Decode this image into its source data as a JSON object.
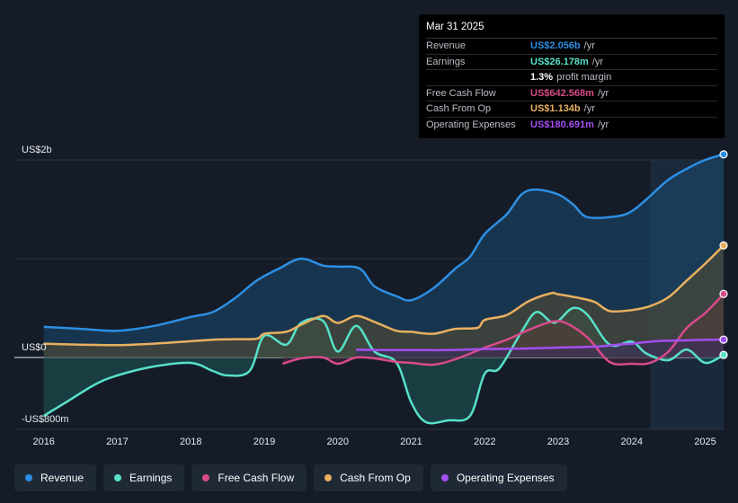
{
  "chart_data": {
    "type": "area",
    "y_axis": {
      "label_top": "US$2b",
      "label_zero": "US$0",
      "label_bottom": "-US$800m",
      "ylim": [
        -800,
        2000
      ],
      "unit": "US$m"
    },
    "x_ticks": [
      "2016",
      "2017",
      "2018",
      "2019",
      "2020",
      "2021",
      "2022",
      "2023",
      "2024",
      "2025"
    ],
    "xlim": [
      2015.6,
      2025.25
    ],
    "highlight_start": 2024.25,
    "series": [
      {
        "name": "Revenue",
        "key": "revenue",
        "color": "#2d8fe3",
        "fill": "#1c4a70",
        "points": [
          [
            2016,
            310
          ],
          [
            2016.5,
            290
          ],
          [
            2017,
            270
          ],
          [
            2017.5,
            320
          ],
          [
            2018,
            410
          ],
          [
            2018.3,
            460
          ],
          [
            2018.6,
            600
          ],
          [
            2018.9,
            780
          ],
          [
            2019.2,
            900
          ],
          [
            2019.5,
            1000
          ],
          [
            2019.8,
            930
          ],
          [
            2020.0,
            920
          ],
          [
            2020.3,
            900
          ],
          [
            2020.5,
            720
          ],
          [
            2020.8,
            620
          ],
          [
            2021.0,
            580
          ],
          [
            2021.3,
            700
          ],
          [
            2021.6,
            900
          ],
          [
            2021.8,
            1020
          ],
          [
            2022.0,
            1250
          ],
          [
            2022.3,
            1450
          ],
          [
            2022.5,
            1650
          ],
          [
            2022.7,
            1700
          ],
          [
            2023.0,
            1650
          ],
          [
            2023.2,
            1550
          ],
          [
            2023.4,
            1420
          ],
          [
            2023.8,
            1430
          ],
          [
            2024.0,
            1480
          ],
          [
            2024.2,
            1600
          ],
          [
            2024.5,
            1800
          ],
          [
            2024.8,
            1930
          ],
          [
            2025.0,
            2000
          ],
          [
            2025.25,
            2056
          ]
        ]
      },
      {
        "name": "Earnings",
        "key": "earnings",
        "color": "#57e1c9",
        "fill": "#1d5a55",
        "points": [
          [
            2016,
            -650
          ],
          [
            2016.3,
            -500
          ],
          [
            2016.7,
            -300
          ],
          [
            2017,
            -200
          ],
          [
            2017.5,
            -100
          ],
          [
            2018,
            -60
          ],
          [
            2018.3,
            -150
          ],
          [
            2018.5,
            -200
          ],
          [
            2018.8,
            -150
          ],
          [
            2019.0,
            220
          ],
          [
            2019.3,
            130
          ],
          [
            2019.5,
            350
          ],
          [
            2019.8,
            370
          ],
          [
            2020.0,
            60
          ],
          [
            2020.25,
            320
          ],
          [
            2020.5,
            60
          ],
          [
            2020.8,
            -60
          ],
          [
            2021.0,
            -500
          ],
          [
            2021.2,
            -720
          ],
          [
            2021.5,
            -700
          ],
          [
            2021.8,
            -650
          ],
          [
            2022.0,
            -180
          ],
          [
            2022.2,
            -120
          ],
          [
            2022.5,
            260
          ],
          [
            2022.7,
            460
          ],
          [
            2022.9,
            360
          ],
          [
            2023.0,
            370
          ],
          [
            2023.2,
            500
          ],
          [
            2023.4,
            430
          ],
          [
            2023.7,
            130
          ],
          [
            2024.0,
            160
          ],
          [
            2024.2,
            40
          ],
          [
            2024.5,
            -30
          ],
          [
            2024.75,
            80
          ],
          [
            2025.0,
            -60
          ],
          [
            2025.25,
            26
          ]
        ]
      },
      {
        "name": "Free Cash Flow",
        "key": "fcf",
        "color": "#d84b8a",
        "fill": "#4a2540",
        "points": [
          [
            2019.25,
            -70
          ],
          [
            2019.5,
            -10
          ],
          [
            2019.8,
            0
          ],
          [
            2020.0,
            -70
          ],
          [
            2020.25,
            0
          ],
          [
            2020.5,
            -10
          ],
          [
            2020.8,
            -50
          ],
          [
            2021.0,
            -60
          ],
          [
            2021.3,
            -80
          ],
          [
            2021.6,
            -20
          ],
          [
            2022.0,
            100
          ],
          [
            2022.3,
            180
          ],
          [
            2022.6,
            280
          ],
          [
            2022.9,
            360
          ],
          [
            2023.1,
            350
          ],
          [
            2023.4,
            200
          ],
          [
            2023.7,
            -50
          ],
          [
            2024.0,
            -70
          ],
          [
            2024.25,
            -60
          ],
          [
            2024.5,
            60
          ],
          [
            2024.75,
            300
          ],
          [
            2025.0,
            450
          ],
          [
            2025.25,
            643
          ]
        ]
      },
      {
        "name": "Cash From Op",
        "key": "cfo",
        "color": "#e8b060",
        "fill": "#5a4a30",
        "points": [
          [
            2016,
            140
          ],
          [
            2016.5,
            130
          ],
          [
            2017,
            125
          ],
          [
            2017.5,
            140
          ],
          [
            2018,
            165
          ],
          [
            2018.3,
            180
          ],
          [
            2018.6,
            185
          ],
          [
            2018.9,
            190
          ],
          [
            2019.0,
            240
          ],
          [
            2019.3,
            260
          ],
          [
            2019.5,
            330
          ],
          [
            2019.8,
            420
          ],
          [
            2020.0,
            350
          ],
          [
            2020.25,
            420
          ],
          [
            2020.5,
            360
          ],
          [
            2020.8,
            270
          ],
          [
            2021.0,
            260
          ],
          [
            2021.3,
            240
          ],
          [
            2021.6,
            290
          ],
          [
            2021.9,
            300
          ],
          [
            2022.0,
            380
          ],
          [
            2022.3,
            430
          ],
          [
            2022.6,
            570
          ],
          [
            2022.9,
            650
          ],
          [
            2023.0,
            640
          ],
          [
            2023.3,
            600
          ],
          [
            2023.5,
            560
          ],
          [
            2023.7,
            470
          ],
          [
            2024.0,
            480
          ],
          [
            2024.25,
            520
          ],
          [
            2024.5,
            610
          ],
          [
            2024.75,
            780
          ],
          [
            2025.0,
            950
          ],
          [
            2025.25,
            1134
          ]
        ]
      },
      {
        "name": "Operating Expenses",
        "key": "opex",
        "color": "#a34ff0",
        "fill": "#3a2a60",
        "points": [
          [
            2020.25,
            80
          ],
          [
            2020.6,
            75
          ],
          [
            2021.0,
            75
          ],
          [
            2021.5,
            75
          ],
          [
            2022.0,
            85
          ],
          [
            2022.5,
            90
          ],
          [
            2023.0,
            100
          ],
          [
            2023.5,
            110
          ],
          [
            2023.8,
            130
          ],
          [
            2024.0,
            140
          ],
          [
            2024.25,
            160
          ],
          [
            2024.5,
            170
          ],
          [
            2024.8,
            175
          ],
          [
            2025.0,
            180
          ],
          [
            2025.25,
            181
          ]
        ]
      }
    ]
  },
  "tooltip": {
    "date": "Mar 31 2025",
    "rows": [
      {
        "label": "Revenue",
        "value": "US$2.056b",
        "unit": "/yr",
        "color": "#2d8fe3"
      },
      {
        "label": "Earnings",
        "value": "US$26.178m",
        "unit": "/yr",
        "color": "#57e1c9"
      },
      {
        "label": "",
        "value": "1.3%",
        "unit": "profit margin",
        "color": "#ffffff"
      },
      {
        "label": "Free Cash Flow",
        "value": "US$642.568m",
        "unit": "/yr",
        "color": "#d84b8a"
      },
      {
        "label": "Cash From Op",
        "value": "US$1.134b",
        "unit": "/yr",
        "color": "#e8b060"
      },
      {
        "label": "Operating Expenses",
        "value": "US$180.691m",
        "unit": "/yr",
        "color": "#a34ff0"
      }
    ]
  },
  "legend": [
    {
      "label": "Revenue",
      "color": "#2d8fe3"
    },
    {
      "label": "Earnings",
      "color": "#57e1c9"
    },
    {
      "label": "Free Cash Flow",
      "color": "#d84b8a"
    },
    {
      "label": "Cash From Op",
      "color": "#e8b060"
    },
    {
      "label": "Operating Expenses",
      "color": "#a34ff0"
    }
  ]
}
